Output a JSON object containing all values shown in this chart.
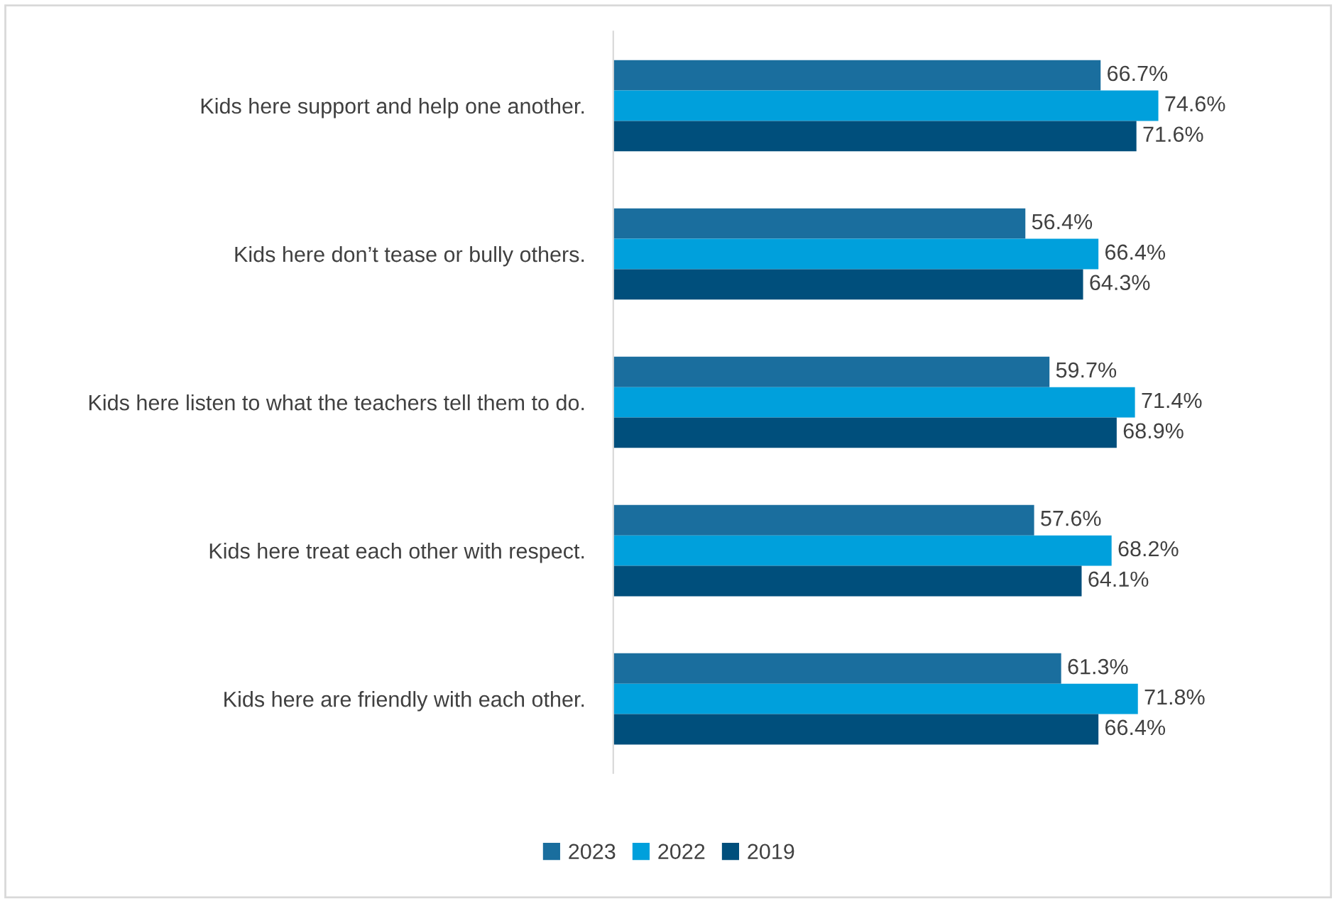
{
  "chart_data": {
    "type": "bar",
    "orientation": "horizontal",
    "categories": [
      "Kids here support and help one another.",
      "Kids here don’t tease or bully others.",
      "Kids here listen to what the teachers tell them to do.",
      "Kids here treat each other with respect.",
      "Kids here are friendly with each other."
    ],
    "series": [
      {
        "name": "2023",
        "color": "#1a6e9e",
        "values": [
          66.7,
          56.4,
          59.7,
          57.6,
          61.3
        ],
        "value_labels": [
          "66.7%",
          "56.4%",
          "59.7%",
          "57.6%",
          "61.3%"
        ]
      },
      {
        "name": "2022",
        "color": "#00a0dc",
        "values": [
          74.6,
          66.4,
          71.4,
          68.2,
          71.8
        ],
        "value_labels": [
          "74.6%",
          "66.4%",
          "71.4%",
          "68.2%",
          "71.8%"
        ]
      },
      {
        "name": "2019",
        "color": "#004f7c",
        "values": [
          71.6,
          64.3,
          68.9,
          64.1,
          66.4
        ],
        "value_labels": [
          "71.6%",
          "64.3%",
          "68.9%",
          "64.1%",
          "66.4%"
        ]
      }
    ],
    "tick_labels": "y",
    "grid": false,
    "legend": "bottom"
  }
}
